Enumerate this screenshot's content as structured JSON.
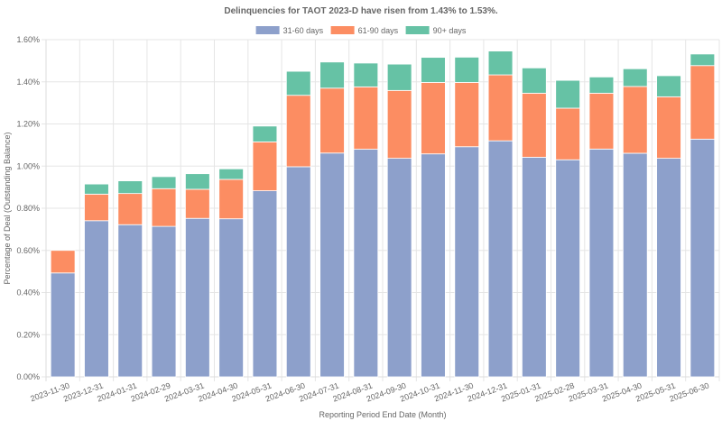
{
  "chart_data": {
    "type": "bar",
    "stacked": true,
    "title": "Delinquencies for TAOT 2023-D have risen from 1.43% to 1.53%.",
    "xlabel": "Reporting Period End Date (Month)",
    "ylabel": "Percentage of Deal (Outstanding Balance)",
    "ylim": [
      0,
      1.6
    ],
    "y_ticks": [
      "0.00%",
      "0.20%",
      "0.40%",
      "0.60%",
      "0.80%",
      "1.00%",
      "1.20%",
      "1.40%",
      "1.60%"
    ],
    "y_tick_values": [
      0,
      0.2,
      0.4,
      0.6,
      0.8,
      1.0,
      1.2,
      1.4,
      1.6
    ],
    "grid": true,
    "legend_position": "top-center",
    "categories": [
      "2023-11-30",
      "2023-12-31",
      "2024-01-31",
      "2024-02-29",
      "2024-03-31",
      "2024-04-30",
      "2024-05-31",
      "2024-06-30",
      "2024-07-31",
      "2024-08-31",
      "2024-09-30",
      "2024-10-31",
      "2024-11-30",
      "2024-12-31",
      "2025-01-31",
      "2025-02-28",
      "2025-03-31",
      "2025-04-30",
      "2025-05-31",
      "2025-06-30"
    ],
    "series": [
      {
        "name": "31-60 days",
        "color": "#8da0cb",
        "values": [
          0.493,
          0.741,
          0.722,
          0.714,
          0.752,
          0.75,
          0.883,
          0.997,
          1.062,
          1.08,
          1.037,
          1.058,
          1.092,
          1.12,
          1.042,
          1.03,
          1.081,
          1.061,
          1.037,
          1.128
        ]
      },
      {
        "name": "61-90 days",
        "color": "#fc8d62",
        "values": [
          0.107,
          0.126,
          0.148,
          0.179,
          0.138,
          0.187,
          0.232,
          0.339,
          0.308,
          0.296,
          0.322,
          0.339,
          0.305,
          0.313,
          0.304,
          0.245,
          0.265,
          0.317,
          0.292,
          0.349
        ]
      },
      {
        "name": "90+ days",
        "color": "#66c2a5",
        "values": [
          0.0,
          0.048,
          0.06,
          0.057,
          0.074,
          0.05,
          0.075,
          0.114,
          0.124,
          0.113,
          0.125,
          0.119,
          0.12,
          0.113,
          0.12,
          0.132,
          0.077,
          0.084,
          0.1,
          0.055
        ]
      }
    ]
  }
}
